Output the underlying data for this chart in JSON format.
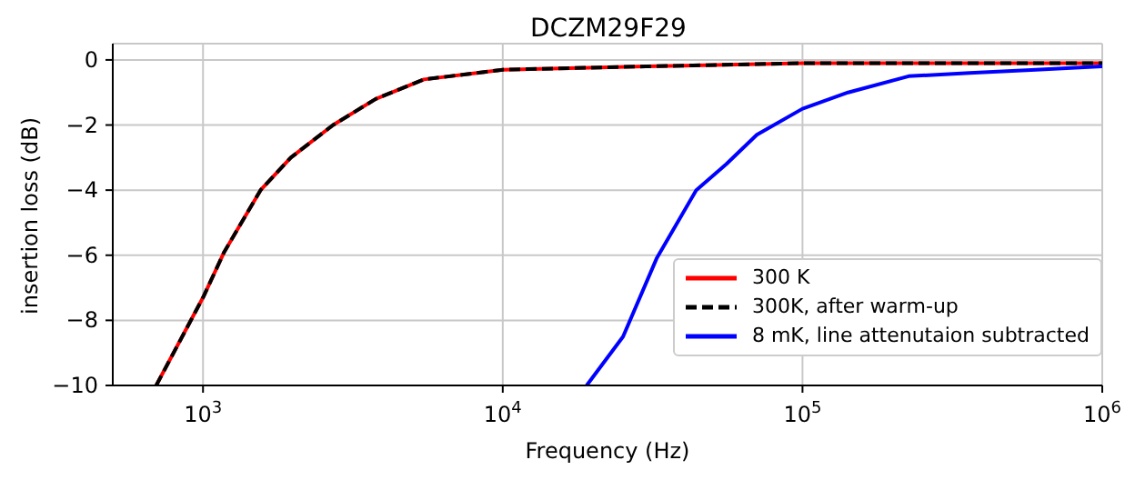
{
  "chart_data": {
    "type": "line",
    "title": "DCZM29F29",
    "xlabel": "Frequency (Hz)",
    "ylabel": "insertion loss (dB)",
    "log": "x",
    "grid": true,
    "legend": "bottom right",
    "marker": "none",
    "xlim": [
      500,
      1000000
    ],
    "ylim": [
      -10,
      0.5
    ],
    "xticks": [
      {
        "value": 1000,
        "label": "10$^{3}$"
      },
      {
        "value": 10000,
        "label": "10$^{4}$"
      },
      {
        "value": 100000,
        "label": "10$^{5}$"
      },
      {
        "value": 1000000,
        "label": "10$^{6}$"
      }
    ],
    "yticks": [
      -10,
      -8,
      -6,
      -4,
      -2,
      0
    ],
    "series": [
      {
        "name": "300 K",
        "color": "#ff0000",
        "line_style": "solid",
        "x": [
          698,
          1000,
          1177,
          1556,
          1963,
          2717,
          3767,
          5457,
          10000,
          30000,
          100000,
          300000,
          1000000
        ],
        "values": [
          -10,
          -7.3,
          -5.9,
          -4.0,
          -3.0,
          -2.0,
          -1.2,
          -0.6,
          -0.3,
          -0.2,
          -0.1,
          -0.1,
          -0.1
        ]
      },
      {
        "name": "300K, after warm-up",
        "color": "#000000",
        "line_style": "dashed",
        "x": [
          698,
          1000,
          1177,
          1556,
          1963,
          2717,
          3767,
          5457,
          10000,
          30000,
          100000,
          300000,
          1000000
        ],
        "values": [
          -10,
          -7.3,
          -5.9,
          -4.0,
          -3.0,
          -2.0,
          -1.2,
          -0.6,
          -0.3,
          -0.2,
          -0.1,
          -0.1,
          -0.1
        ]
      },
      {
        "name": "8 mK, line attenutaion subtracted",
        "color": "#0000ff",
        "line_style": "solid",
        "x": [
          19050,
          25200,
          32600,
          44200,
          55700,
          70400,
          100000,
          141900,
          226000,
          361000,
          600000,
          1000000
        ],
        "values": [
          -10,
          -8.5,
          -6.1,
          -4.0,
          -3.2,
          -2.3,
          -1.5,
          -1.0,
          -0.5,
          -0.4,
          -0.3,
          -0.2
        ]
      }
    ]
  }
}
